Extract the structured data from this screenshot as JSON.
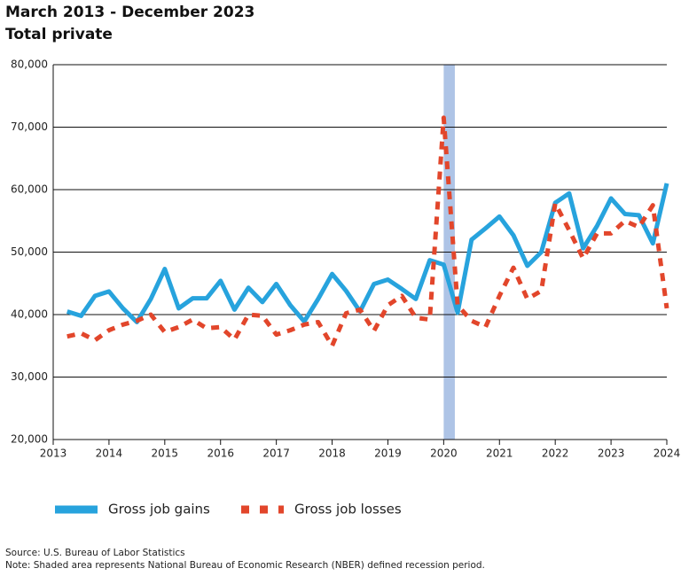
{
  "chart_data": {
    "type": "line",
    "title": "March 2013 - December 2023",
    "subtitle": "Total private",
    "x": [
      2013.25,
      2013.5,
      2013.75,
      2014,
      2014.25,
      2014.5,
      2014.75,
      2015,
      2015.25,
      2015.5,
      2015.75,
      2016,
      2016.25,
      2016.5,
      2016.75,
      2017,
      2017.25,
      2017.5,
      2017.75,
      2018,
      2018.25,
      2018.5,
      2018.75,
      2019,
      2019.25,
      2019.5,
      2019.75,
      2020,
      2020.25,
      2020.5,
      2020.75,
      2021,
      2021.25,
      2021.5,
      2021.75,
      2022,
      2022.25,
      2022.5,
      2022.75,
      2023,
      2023.25,
      2023.5,
      2023.75,
      2024
    ],
    "series": [
      {
        "name": "Gross job gains",
        "color": "#27a3dd",
        "dash": false,
        "values": [
          40500,
          39800,
          43000,
          43700,
          41000,
          38800,
          42500,
          47300,
          41000,
          42600,
          42600,
          45400,
          40800,
          44300,
          42000,
          44900,
          41500,
          38900,
          42500,
          46500,
          43800,
          40500,
          44900,
          45600,
          44100,
          42500,
          48700,
          48000,
          40300,
          52000,
          53800,
          55700,
          52700,
          47800,
          50000,
          57900,
          59400,
          50600,
          54200,
          58600,
          56100,
          55900,
          51400,
          61000
        ]
      },
      {
        "name": "Gross job losses",
        "color": "#e2462b",
        "dash": true,
        "values": [
          36500,
          37000,
          35900,
          37500,
          38400,
          39000,
          40000,
          37200,
          38000,
          39200,
          37800,
          38000,
          36000,
          40000,
          39800,
          36800,
          37500,
          38400,
          38800,
          35000,
          40200,
          40800,
          37400,
          41500,
          43000,
          39500,
          39200,
          71500,
          41500,
          39000,
          38000,
          43000,
          47500,
          42500,
          43800,
          57800,
          53500,
          49000,
          53000,
          53000,
          55000,
          54000,
          57500,
          41000
        ]
      }
    ],
    "shaded_range": {
      "x": [
        2020,
        2020.2
      ],
      "color": "#aec4e6"
    },
    "xlim": [
      2013,
      2024
    ],
    "xticks": [
      2013,
      2014,
      2015,
      2016,
      2017,
      2018,
      2019,
      2020,
      2021,
      2022,
      2023,
      2024
    ],
    "ylim": [
      20000,
      80000
    ],
    "yticks": [
      {
        "value": 20000,
        "label": "20,000"
      },
      {
        "value": 30000,
        "label": "30,000"
      },
      {
        "value": 40000,
        "label": "40,000"
      },
      {
        "value": 50000,
        "label": "50,000"
      },
      {
        "value": 60000,
        "label": "60,000"
      },
      {
        "value": 70000,
        "label": "70,000"
      },
      {
        "value": 80000,
        "label": "80,000"
      }
    ],
    "grid": true,
    "source": "Source: U.S. Bureau of Labor Statistics",
    "note": "Note: Shaded area represents National Bureau of Economic Research (NBER) defined recession period."
  }
}
